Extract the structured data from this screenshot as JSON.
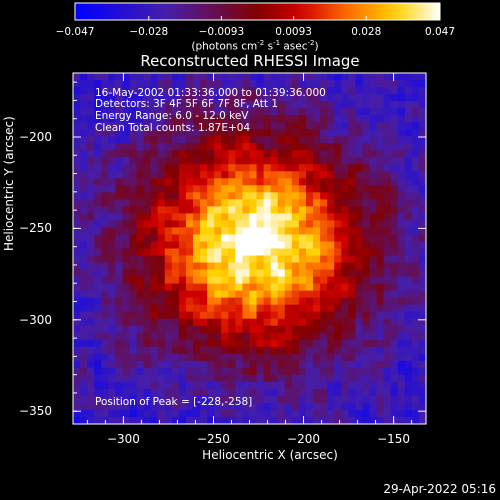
{
  "colorbar": {
    "ticks": [
      "-0.047",
      "-0.028",
      "-0.0093",
      "0.0093",
      "0.028",
      "0.047"
    ],
    "units_text": "(photons cm",
    "units_exp1": "-2",
    "units_mid": " s",
    "units_exp2": "-1",
    "units_mid2": " asec",
    "units_exp3": "-2",
    "units_end": ")"
  },
  "info_lines": [
    "16-May-2002 01:33:36.000 to 01:39:36.000",
    "Detectors: 3F 4F 5F 6F 7F 8F, Att 1",
    "Energy Range: 6.0 - 12.0 keV",
    "Clean     Total counts: 1.87E+04"
  ],
  "peak_text": "Position of Peak = [-228,-258]",
  "footer": "29-Apr-2022 05:16",
  "colors": {
    "background": "#000000",
    "text": "#ffffff"
  },
  "chart_data": {
    "type": "heatmap",
    "title": "Reconstructed RHESSI Image",
    "xlabel": "Heliocentric X (arcsec)",
    "ylabel": "Heliocentric Y (arcsec)",
    "xlim": [
      -328,
      -132
    ],
    "ylim": [
      -357,
      -165
    ],
    "xticks": [
      -300,
      -250,
      -200,
      -150
    ],
    "yticks": [
      -200,
      -250,
      -300,
      -350
    ],
    "xtick_labels": [
      "−300",
      "−250",
      "−200",
      "−150"
    ],
    "ytick_labels": [
      "−200",
      "−250",
      "−300",
      "−350"
    ],
    "colorscale": "red-temperature (blue negative, white positive)",
    "value_range": [
      -0.047,
      0.047
    ],
    "peak_position": [
      -228,
      -258
    ],
    "peak_value": 0.047
  }
}
